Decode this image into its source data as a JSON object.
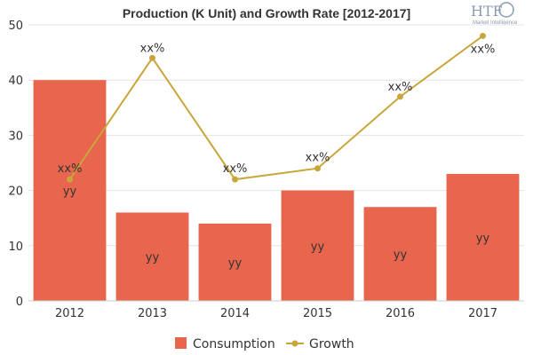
{
  "chart_data": {
    "type": "bar",
    "title": "Production (K Unit) and Growth Rate [2012-2017]",
    "categories": [
      "2012",
      "2013",
      "2014",
      "2015",
      "2016",
      "2017"
    ],
    "ylim": [
      0,
      50
    ],
    "yticks": [
      0,
      10,
      20,
      30,
      40,
      50
    ],
    "grid": true,
    "legend_position": "bottom",
    "series": [
      {
        "name": "Consumption",
        "type": "bar",
        "color": "#e8664e",
        "values": [
          40,
          16,
          14,
          20,
          17,
          23
        ],
        "data_labels": [
          "yy",
          "yy",
          "yy",
          "yy",
          "yy",
          "yy"
        ]
      },
      {
        "name": "Growth",
        "type": "line",
        "color": "#c9a63a",
        "values": [
          22,
          44,
          22,
          24,
          37,
          48
        ],
        "data_labels": [
          "xx%",
          "xx%",
          "xx%",
          "xx%",
          "xx%",
          "xx%"
        ]
      }
    ]
  },
  "logo": {
    "text": "HTF",
    "subtext": "Market Intelligence"
  }
}
